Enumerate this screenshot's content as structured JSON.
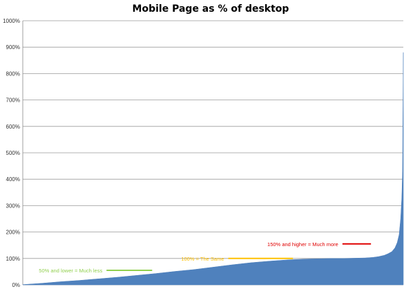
{
  "chart_data": {
    "type": "area",
    "title": "Mobile Page as % of desktop",
    "xlabel": "",
    "ylabel": "",
    "ylim": [
      0,
      1000
    ],
    "yticks": [
      "0%",
      "100%",
      "200%",
      "300%",
      "400%",
      "500%",
      "600%",
      "700%",
      "800%",
      "900%",
      "1000%"
    ],
    "grid": true,
    "colors": {
      "area": "#4f81bd",
      "grid": "#9a9a9a"
    },
    "x_rank_range": [
      0,
      100
    ],
    "series": [
      {
        "x": [
          0,
          5,
          10,
          15,
          20,
          25,
          30,
          35,
          40,
          45,
          50,
          55,
          60,
          65,
          70,
          75,
          78,
          81,
          84,
          87,
          90,
          92,
          93.5,
          95,
          96,
          97,
          97.8,
          98.4,
          98.9,
          99.3,
          99.6,
          99.8,
          99.9,
          100
        ],
        "values": [
          1,
          6,
          12,
          17,
          23,
          29,
          36,
          43,
          51,
          58,
          67,
          76,
          84,
          90,
          95,
          98,
          99,
          100,
          100,
          101,
          102,
          104,
          107,
          112,
          118,
          126,
          140,
          160,
          190,
          250,
          330,
          430,
          660,
          880
        ]
      }
    ],
    "annotations": [
      {
        "text": "50% and lower = Much less",
        "color": "#92d050",
        "y": 55,
        "line_x": [
          22,
          34
        ]
      },
      {
        "text": "100% = The Same",
        "color": "#ffc000",
        "y": 100,
        "line_x": [
          54,
          71
        ]
      },
      {
        "text": "150% and higher = Much more",
        "color": "#e00000",
        "y": 155,
        "line_x": [
          84,
          91.5
        ]
      }
    ]
  }
}
